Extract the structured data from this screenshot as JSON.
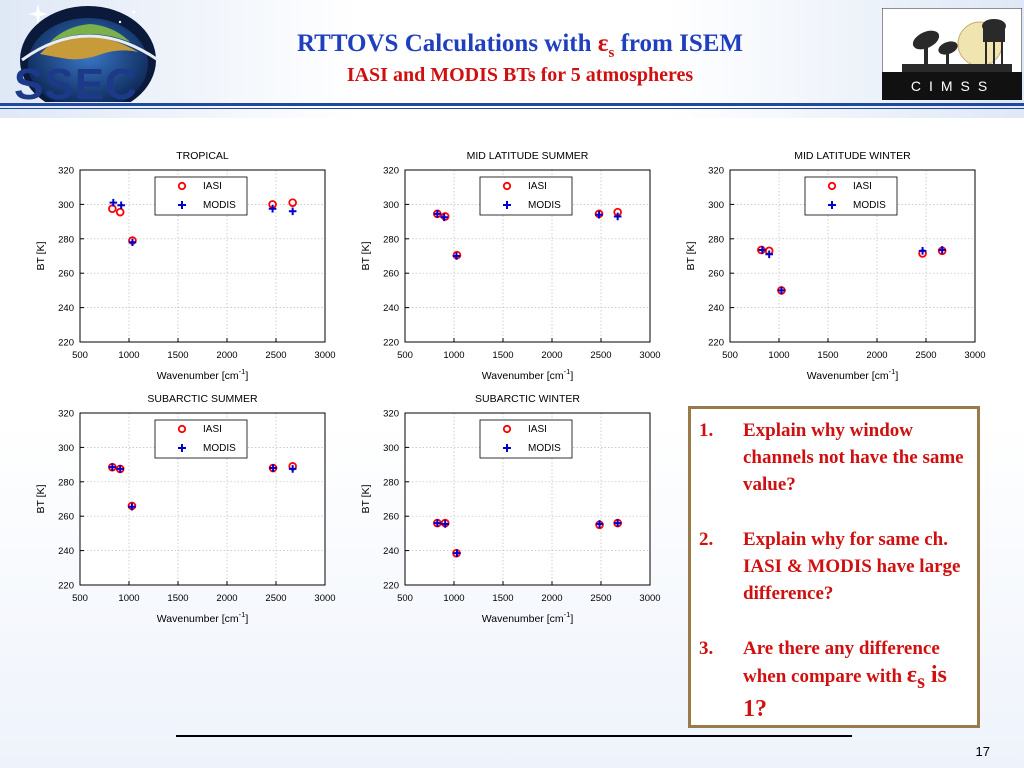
{
  "header": {
    "title_prefix": "RTTOVS Calculations with ",
    "title_epsilon": "ε",
    "title_epsilon_sub": "s",
    "title_suffix": " from ISEM",
    "subtitle": "IASI and MODIS BTs for 5 atmospheres",
    "left_logo_text": "SSEC",
    "right_logo_text": "CIMSS"
  },
  "colors": {
    "title": "#1f3fbf",
    "accent_red": "#d01010",
    "iasi": "#ff0000",
    "modis": "#0000cc",
    "box_border": "#9b7a4a"
  },
  "chart_data": [
    {
      "type": "scatter",
      "title": "TROPICAL",
      "xlabel": "Wavenumber [cm",
      "xlabel_sup": "-1",
      "xlabel_end": "]",
      "ylabel": "BT [K]",
      "xlim": [
        500,
        3000
      ],
      "ylim": [
        220,
        320
      ],
      "xticks": [
        500,
        1000,
        1500,
        2000,
        2500,
        3000
      ],
      "yticks": [
        220,
        240,
        260,
        280,
        300,
        320
      ],
      "grid": true,
      "legend_position": "top-center",
      "series": [
        {
          "name": "IASI",
          "marker": "circle",
          "color": "#ff0000",
          "points": [
            [
              830,
              297.5
            ],
            [
              910,
              295.5
            ],
            [
              1035,
              279
            ],
            [
              2465,
              300
            ],
            [
              2670,
              301
            ]
          ]
        },
        {
          "name": "MODIS",
          "marker": "plus",
          "color": "#0000cc",
          "points": [
            [
              840,
              301
            ],
            [
              920,
              299.5
            ],
            [
              1035,
              278
            ],
            [
              2465,
              297.5
            ],
            [
              2670,
              296
            ]
          ]
        }
      ]
    },
    {
      "type": "scatter",
      "title": "MID LATITUDE SUMMER",
      "xlabel": "Wavenumber [cm",
      "xlabel_sup": "-1",
      "xlabel_end": "]",
      "ylabel": "BT [K]",
      "xlim": [
        500,
        3000
      ],
      "ylim": [
        220,
        320
      ],
      "xticks": [
        500,
        1000,
        1500,
        2000,
        2500,
        3000
      ],
      "yticks": [
        220,
        240,
        260,
        280,
        300,
        320
      ],
      "grid": true,
      "legend_position": "top-center",
      "series": [
        {
          "name": "IASI",
          "marker": "circle",
          "color": "#ff0000",
          "points": [
            [
              830,
              294.5
            ],
            [
              910,
              293
            ],
            [
              1030,
              270.5
            ],
            [
              2480,
              294.5
            ],
            [
              2670,
              295.5
            ]
          ]
        },
        {
          "name": "MODIS",
          "marker": "plus",
          "color": "#0000cc",
          "points": [
            [
              830,
              294.5
            ],
            [
              900,
              292.5
            ],
            [
              1025,
              270
            ],
            [
              2480,
              294
            ],
            [
              2670,
              293
            ]
          ]
        }
      ]
    },
    {
      "type": "scatter",
      "title": "MID LATITUDE WINTER",
      "xlabel": "Wavenumber [cm",
      "xlabel_sup": "-1",
      "xlabel_end": "]",
      "ylabel": "BT [K]",
      "xlim": [
        500,
        3000
      ],
      "ylim": [
        220,
        320
      ],
      "xticks": [
        500,
        1000,
        1500,
        2000,
        2500,
        3000
      ],
      "yticks": [
        220,
        240,
        260,
        280,
        300,
        320
      ],
      "grid": true,
      "legend_position": "top-center",
      "series": [
        {
          "name": "IASI",
          "marker": "circle",
          "color": "#ff0000",
          "points": [
            [
              820,
              273.5
            ],
            [
              900,
              273
            ],
            [
              1025,
              250
            ],
            [
              2465,
              271.5
            ],
            [
              2665,
              273
            ]
          ]
        },
        {
          "name": "MODIS",
          "marker": "plus",
          "color": "#0000cc",
          "points": [
            [
              830,
              273.5
            ],
            [
              900,
              271
            ],
            [
              1025,
              250
            ],
            [
              2465,
              273
            ],
            [
              2665,
              273.5
            ]
          ]
        }
      ]
    },
    {
      "type": "scatter",
      "title": "SUBARCTIC SUMMER",
      "xlabel": "Wavenumber [cm",
      "xlabel_sup": "-1",
      "xlabel_end": "]",
      "ylabel": "BT [K]",
      "xlim": [
        500,
        3000
      ],
      "ylim": [
        220,
        320
      ],
      "xticks": [
        500,
        1000,
        1500,
        2000,
        2500,
        3000
      ],
      "yticks": [
        220,
        240,
        260,
        280,
        300,
        320
      ],
      "grid": true,
      "legend_position": "top-center",
      "series": [
        {
          "name": "IASI",
          "marker": "circle",
          "color": "#ff0000",
          "points": [
            [
              830,
              288.5
            ],
            [
              910,
              287.5
            ],
            [
              1030,
              266
            ],
            [
              2470,
              288
            ],
            [
              2670,
              289
            ]
          ]
        },
        {
          "name": "MODIS",
          "marker": "plus",
          "color": "#0000cc",
          "points": [
            [
              830,
              288.5
            ],
            [
              910,
              287.5
            ],
            [
              1030,
              265.5
            ],
            [
              2470,
              288
            ],
            [
              2670,
              287.5
            ]
          ]
        }
      ]
    },
    {
      "type": "scatter",
      "title": "SUBARCTIC WINTER",
      "xlabel": "Wavenumber [cm",
      "xlabel_sup": "-1",
      "xlabel_end": "]",
      "ylabel": "BT [K]",
      "xlim": [
        500,
        3000
      ],
      "ylim": [
        220,
        320
      ],
      "xticks": [
        500,
        1000,
        1500,
        2000,
        2500,
        3000
      ],
      "yticks": [
        220,
        240,
        260,
        280,
        300,
        320
      ],
      "grid": true,
      "legend_position": "top-center",
      "series": [
        {
          "name": "IASI",
          "marker": "circle",
          "color": "#ff0000",
          "points": [
            [
              830,
              256
            ],
            [
              910,
              256
            ],
            [
              1025,
              238.5
            ],
            [
              2485,
              255
            ],
            [
              2670,
              256
            ]
          ]
        },
        {
          "name": "MODIS",
          "marker": "plus",
          "color": "#0000cc",
          "points": [
            [
              830,
              256
            ],
            [
              910,
              255.5
            ],
            [
              1030,
              238.5
            ],
            [
              2485,
              255.5
            ],
            [
              2670,
              256
            ]
          ]
        }
      ]
    }
  ],
  "questions": [
    {
      "number": "1.",
      "text": "Explain why window channels not have the same value?"
    },
    {
      "number": "2.",
      "text": "Explain why for same ch. IASI & MODIS have large difference?"
    },
    {
      "number": "3.",
      "text_before": "Are there any difference when compare with ",
      "epsilon": "ε",
      "epsilon_sub": "s",
      "text_after": " is 1?"
    }
  ],
  "page_number": "17"
}
